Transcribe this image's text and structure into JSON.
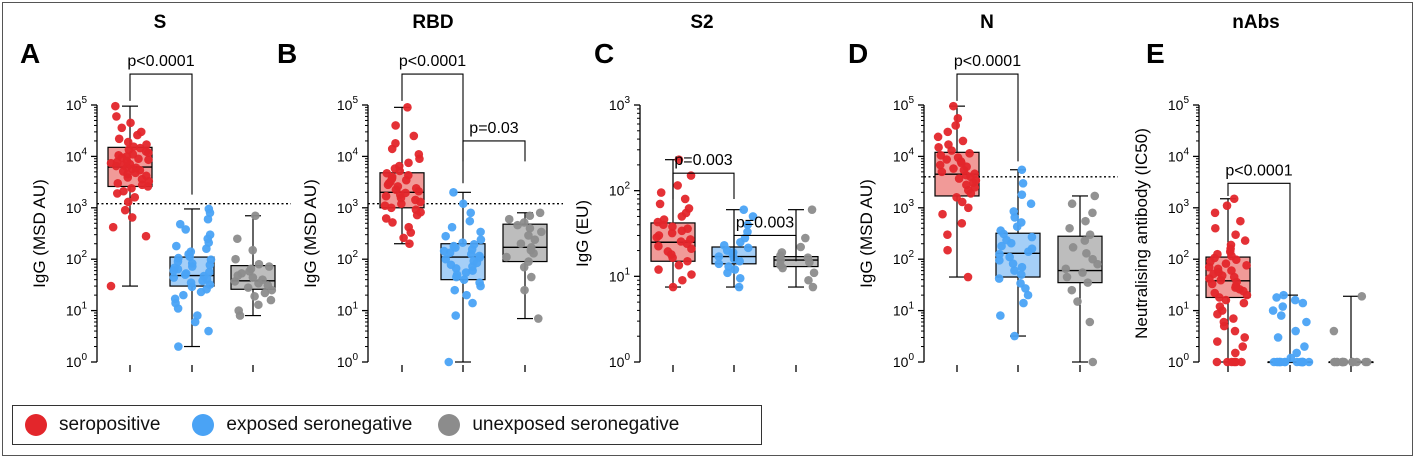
{
  "chart_data": [
    {
      "type": "box",
      "panel_letter": "A",
      "title": "S",
      "ylabel": "IgG (MSD AU)",
      "yscale": "log",
      "ylim": [
        1,
        100000
      ],
      "tick_exponents": [
        "0",
        "1",
        "2",
        "3",
        "4",
        "5"
      ],
      "threshold": 1200,
      "groups": [
        {
          "name": "seropositive",
          "whisker": [
            30,
            95000
          ],
          "q1": 2600,
          "median": 6200,
          "q3": 15000,
          "points": [
            30,
            280,
            420,
            650,
            900,
            1300,
            1600,
            1900,
            2100,
            2400,
            2600,
            2800,
            3000,
            3300,
            3600,
            3900,
            4200,
            4500,
            4800,
            5100,
            5400,
            5700,
            6000,
            6200,
            6500,
            6800,
            7100,
            7400,
            7800,
            8200,
            8600,
            9000,
            9500,
            10000,
            10500,
            11000,
            11800,
            12500,
            13500,
            14500,
            15500,
            17000,
            19000,
            22000,
            26000,
            30000,
            36000,
            45000,
            60000,
            95000
          ]
        },
        {
          "name": "exposed seronegative",
          "whisker": [
            2,
            950
          ],
          "q1": 30,
          "median": 48,
          "q3": 110,
          "points": [
            2,
            4,
            6,
            8,
            11,
            14,
            17,
            20,
            23,
            26,
            29,
            32,
            35,
            38,
            41,
            44,
            47,
            50,
            53,
            56,
            60,
            64,
            68,
            72,
            77,
            83,
            90,
            98,
            105,
            112,
            125,
            140,
            160,
            180,
            210,
            250,
            300,
            380,
            480,
            600,
            800,
            950
          ]
        },
        {
          "name": "unexposed seronegative",
          "whisker": [
            8,
            700
          ],
          "q1": 26,
          "median": 38,
          "q3": 75,
          "points": [
            8,
            10,
            13,
            16,
            19,
            22,
            25,
            28,
            31,
            34,
            37,
            40,
            44,
            48,
            53,
            58,
            65,
            72,
            80,
            100,
            150,
            250,
            700
          ]
        }
      ],
      "annotations": [
        {
          "text": "p<0.0001",
          "from": 0,
          "to": 1,
          "y": 400000,
          "drop_left": 120000,
          "drop_right": 1800
        }
      ]
    },
    {
      "type": "box",
      "panel_letter": "B",
      "title": "RBD",
      "ylabel": "IgG (MSD AU)",
      "yscale": "log",
      "ylim": [
        1,
        100000
      ],
      "tick_exponents": [
        "0",
        "1",
        "2",
        "3",
        "4",
        "5"
      ],
      "threshold": 1200,
      "groups": [
        {
          "name": "seropositive",
          "whisker": [
            200,
            90000
          ],
          "q1": 1000,
          "median": 2000,
          "q3": 4800,
          "points": [
            200,
            260,
            330,
            420,
            520,
            620,
            720,
            820,
            920,
            1000,
            1100,
            1200,
            1300,
            1420,
            1550,
            1680,
            1800,
            1950,
            2100,
            2250,
            2400,
            2600,
            2800,
            3000,
            3200,
            3450,
            3700,
            4000,
            4300,
            4700,
            5200,
            5800,
            6500,
            7500,
            9000,
            11000,
            14000,
            18000,
            25000,
            40000,
            90000
          ]
        },
        {
          "name": "exposed seronegative",
          "whisker": [
            1,
            2000
          ],
          "q1": 40,
          "median": 110,
          "q3": 200,
          "points": [
            1,
            8,
            14,
            20,
            25,
            30,
            35,
            40,
            45,
            50,
            55,
            60,
            66,
            72,
            78,
            85,
            92,
            100,
            108,
            116,
            125,
            134,
            144,
            155,
            168,
            180,
            195,
            210,
            240,
            280,
            340,
            420,
            550,
            800,
            1200,
            2000
          ]
        },
        {
          "name": "unexposed seronegative",
          "whisker": [
            7,
            800
          ],
          "q1": 90,
          "median": 170,
          "q3": 480,
          "points": [
            7,
            25,
            45,
            70,
            90,
            110,
            130,
            150,
            170,
            200,
            240,
            290,
            340,
            400,
            460,
            520,
            600,
            700,
            800
          ]
        }
      ],
      "annotations": [
        {
          "text": "p<0.0001",
          "from": 0,
          "to": 1,
          "y": 400000,
          "drop_left": 120000,
          "drop_right": 3000
        },
        {
          "text": "p=0.03",
          "from": 1,
          "to": 2,
          "y": 20000,
          "drop_left": 8000,
          "drop_right": 8000
        }
      ]
    },
    {
      "type": "box",
      "panel_letter": "C",
      "title": "S2",
      "ylabel": "IgG (EU)",
      "yscale": "log",
      "ylim": [
        1,
        1000
      ],
      "tick_exponents": [
        "0",
        "1",
        "2",
        "3"
      ],
      "threshold": null,
      "groups": [
        {
          "name": "seropositive",
          "whisker": [
            7.5,
            230
          ],
          "q1": 15,
          "median": 25,
          "q3": 42,
          "points": [
            7.5,
            9,
            10.5,
            12,
            13.5,
            15,
            16.5,
            18,
            19.5,
            21,
            22.5,
            24,
            25.5,
            27,
            28.5,
            30,
            32,
            34,
            36,
            38,
            40,
            43,
            46,
            50,
            55,
            62,
            70,
            80,
            95,
            115,
            150,
            230
          ]
        },
        {
          "name": "exposed seronegative",
          "whisker": [
            7.5,
            60
          ],
          "q1": 14,
          "median": 17,
          "q3": 22,
          "points": [
            7.5,
            9.5,
            11,
            12,
            13,
            14,
            15,
            16,
            17,
            18,
            19,
            20,
            21.5,
            23,
            25,
            28,
            33,
            40,
            50,
            60
          ]
        },
        {
          "name": "unexposed seronegative",
          "whisker": [
            7.5,
            60
          ],
          "q1": 13,
          "median": 15.5,
          "q3": 17,
          "points": [
            7.5,
            9,
            11,
            12.5,
            13.5,
            14.5,
            15.5,
            16.5,
            17.5,
            19,
            22,
            28,
            60
          ]
        }
      ],
      "annotations": [
        {
          "text": "p=0.003",
          "from": 0,
          "to": 1,
          "y": 160,
          "drop_left": 80,
          "drop_right": 80
        },
        {
          "text": "p=0.003",
          "from": 1,
          "to": 2,
          "y": 30,
          "drop_left": 15,
          "drop_right": 15
        }
      ]
    },
    {
      "type": "box",
      "panel_letter": "D",
      "title": "N",
      "ylabel": "IgG (MSD AU)",
      "yscale": "log",
      "ylim": [
        1,
        100000
      ],
      "tick_exponents": [
        "0",
        "1",
        "2",
        "3",
        "4",
        "5"
      ],
      "threshold": 4000,
      "groups": [
        {
          "name": "seropositive",
          "whisker": [
            45,
            95000
          ],
          "q1": 1700,
          "median": 4500,
          "q3": 12000,
          "points": [
            45,
            150,
            300,
            500,
            750,
            1000,
            1300,
            1600,
            1900,
            2200,
            2500,
            2800,
            3100,
            3400,
            3700,
            4000,
            4300,
            4600,
            5000,
            5400,
            5800,
            6300,
            6800,
            7400,
            8000,
            8700,
            9500,
            10500,
            11500,
            13000,
            15000,
            17000,
            20000,
            24000,
            30000,
            40000,
            55000,
            95000
          ]
        },
        {
          "name": "exposed seronegative",
          "whisker": [
            3.2,
            5500
          ],
          "q1": 45,
          "median": 130,
          "q3": 320,
          "points": [
            3.2,
            8,
            14,
            20,
            27,
            34,
            42,
            50,
            60,
            70,
            82,
            95,
            110,
            125,
            140,
            160,
            180,
            205,
            235,
            270,
            310,
            360,
            430,
            520,
            650,
            850,
            1200,
            1800,
            3000,
            5500
          ]
        },
        {
          "name": "unexposed seronegative",
          "whisker": [
            1,
            1700
          ],
          "q1": 35,
          "median": 60,
          "q3": 280,
          "points": [
            1,
            6,
            15,
            25,
            35,
            45,
            55,
            65,
            80,
            100,
            130,
            170,
            230,
            300,
            400,
            550,
            800,
            1200,
            1700
          ]
        }
      ],
      "annotations": [
        {
          "text": "p<0.0001",
          "from": 0,
          "to": 1,
          "y": 400000,
          "drop_left": 120000,
          "drop_right": 8000
        }
      ]
    },
    {
      "type": "box",
      "panel_letter": "E",
      "title": "nAbs",
      "ylabel": "Neutralising antibody (IC50)",
      "yscale": "log",
      "ylim": [
        1,
        100000
      ],
      "tick_exponents": [
        "0",
        "1",
        "2",
        "3",
        "4",
        "5"
      ],
      "threshold": null,
      "groups": [
        {
          "name": "seropositive",
          "whisker": [
            1,
            1500
          ],
          "q1": 18,
          "median": 38,
          "q3": 110,
          "points": [
            1,
            1,
            1,
            1,
            1,
            1,
            1.5,
            2,
            2.5,
            3,
            4,
            5,
            6,
            7,
            8.5,
            10,
            12,
            14,
            16,
            18,
            20,
            22,
            24,
            26,
            28,
            30,
            33,
            36,
            39,
            42,
            45,
            48,
            52,
            56,
            60,
            65,
            70,
            76,
            82,
            90,
            98,
            106,
            115,
            125,
            140,
            160,
            190,
            230,
            300,
            400,
            550,
            800,
            1100,
            1500
          ]
        },
        {
          "name": "exposed seronegative",
          "whisker": [
            1,
            20
          ],
          "q1": 1,
          "median": 1,
          "q3": 1,
          "points": [
            1,
            1,
            1,
            1,
            1,
            1,
            1,
            1,
            1,
            1,
            1,
            1,
            1,
            1,
            1,
            1,
            1.2,
            1.5,
            2,
            3,
            4,
            6,
            8,
            10,
            12,
            14,
            16,
            18,
            20
          ]
        },
        {
          "name": "unexposed seronegative",
          "whisker": [
            1,
            19
          ],
          "q1": 1,
          "median": 1,
          "q3": 1,
          "points": [
            1,
            1,
            1,
            1,
            1,
            1,
            1,
            1,
            1,
            1,
            1,
            1,
            1,
            1,
            1,
            4,
            19
          ]
        }
      ],
      "annotations": [
        {
          "text": "p<0.0001",
          "from": 0,
          "to": 1,
          "y": 3000,
          "drop_left": 1700,
          "drop_right": 20
        }
      ]
    }
  ],
  "legend": [
    {
      "label": "seropositive",
      "color": "#e3262b"
    },
    {
      "label": "exposed seronegative",
      "color": "#4aa3f5"
    },
    {
      "label": "unexposed seronegative",
      "color": "#8c8c8c"
    }
  ],
  "colors": {
    "seropositive": {
      "point": "#e3262b",
      "box": "#f19a98"
    },
    "exposed seronegative": {
      "point": "#4aa3f5",
      "box": "#a5cff7"
    },
    "unexposed seronegative": {
      "point": "#8c8c8c",
      "box": "#bdbdbd"
    }
  },
  "tick_base": "10"
}
